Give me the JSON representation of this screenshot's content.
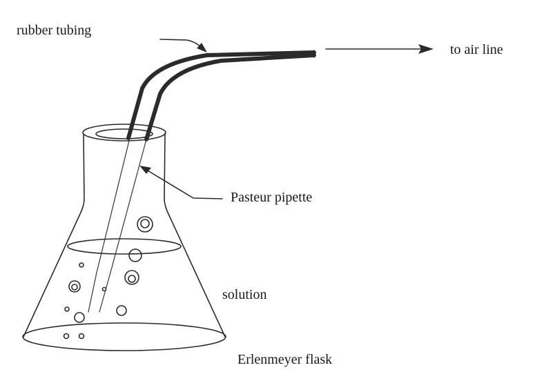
{
  "labels": {
    "rubber_tubing": "rubber tubing",
    "air_line": "to air line",
    "pasteur_pipette": "Pasteur pipette",
    "solution": "solution",
    "flask": "Erlenmeyer flask"
  },
  "colors": {
    "ink": "#2a2a2a",
    "background": "#ffffff"
  }
}
